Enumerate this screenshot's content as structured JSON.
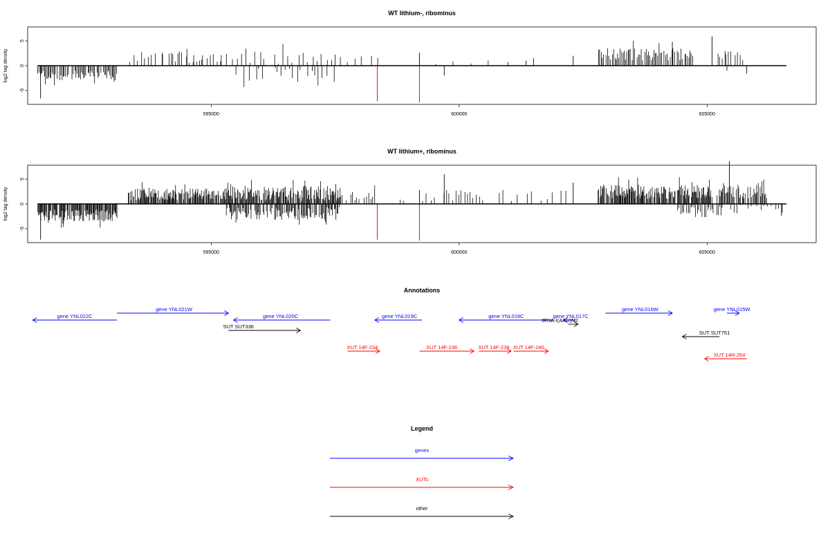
{
  "colors": {
    "genes": "#0000ff",
    "xuts": "#ff0000",
    "other": "#000000",
    "axis": "#000000"
  },
  "chart_data": [
    {
      "type": "bar",
      "title": "WT lithium-, ribominus",
      "xlabel": "",
      "ylabel": "log2 tag density",
      "xlim": [
        591300,
        607200
      ],
      "ylim": [
        -7.8,
        7.8
      ],
      "xticks": [
        595000,
        600000,
        605000
      ],
      "xticklabels": [
        "595000",
        "600000",
        "605000"
      ],
      "yticks": [
        5,
        0,
        -5
      ],
      "yticklabels": [
        "5",
        "0",
        "-5"
      ],
      "grid": false,
      "baseline": {
        "x": [
          591500,
          606600
        ],
        "y": 0
      },
      "red_marks": [
        {
          "x": 598350,
          "y": -7.2
        },
        {
          "x": 599200,
          "y": -7.4
        }
      ],
      "segments": [
        {
          "from": 591500,
          "to": 593100,
          "step": 22,
          "sign": -1,
          "base": 2.6,
          "amp": 1.9,
          "seed": 11
        },
        {
          "from": 593350,
          "to": 595200,
          "step": 70,
          "sign": 1,
          "base": 1.3,
          "amp": 2.2,
          "seed": 12
        },
        {
          "from": 594000,
          "to": 595000,
          "step": 160,
          "sign": 1,
          "base": 2.6,
          "amp": 1.8,
          "seed": 13
        },
        {
          "from": 595200,
          "to": 597600,
          "step": 95,
          "sign": 1,
          "base": 1.0,
          "amp": 2.5,
          "seed": 14
        },
        {
          "from": 595500,
          "to": 597500,
          "step": 75,
          "sign": -1,
          "base": 1.2,
          "amp": 2.8,
          "seed": 15
        },
        {
          "from": 597600,
          "to": 598300,
          "step": 140,
          "sign": 1,
          "base": 1.0,
          "amp": 1.6,
          "seed": 16
        },
        {
          "from": 599300,
          "to": 601000,
          "step": 420,
          "sign": 1,
          "base": 0.6,
          "amp": 1.6,
          "seed": 17
        },
        {
          "from": 602800,
          "to": 604700,
          "step": 26,
          "sign": 1,
          "base": 2.6,
          "amp": 2.5,
          "seed": 18
        },
        {
          "from": 605200,
          "to": 605700,
          "step": 45,
          "sign": 1,
          "base": 1.8,
          "amp": 2.5,
          "seed": 19
        }
      ],
      "bars": [
        {
          "x": 591560,
          "y": -6.6
        },
        {
          "x": 599200,
          "y": 2.6
        },
        {
          "x": 599700,
          "y": -2.0
        },
        {
          "x": 601350,
          "y": 1.0
        },
        {
          "x": 601500,
          "y": 1.5
        },
        {
          "x": 602300,
          "y": 2.0
        },
        {
          "x": 604300,
          "y": 4.8
        },
        {
          "x": 605100,
          "y": 5.9
        },
        {
          "x": 605400,
          "y": -1.0
        },
        {
          "x": 605800,
          "y": -1.6
        }
      ]
    },
    {
      "type": "bar",
      "title": "WT lithium+, ribominus",
      "xlabel": "",
      "ylabel": "log2 tag density",
      "xlim": [
        591300,
        607200
      ],
      "ylim": [
        -7.8,
        7.8
      ],
      "xticks": [
        595000,
        600000,
        605000
      ],
      "xticklabels": [
        "595000",
        "600000",
        "605000"
      ],
      "yticks": [
        5,
        0,
        -5
      ],
      "yticklabels": [
        "5",
        "0",
        "-5"
      ],
      "grid": false,
      "baseline": {
        "x": [
          591500,
          606600
        ],
        "y": 0
      },
      "red_marks": [
        {
          "x": 598350,
          "y": -7.2
        },
        {
          "x": 599200,
          "y": -7.4
        }
      ],
      "segments": [
        {
          "from": 591500,
          "to": 593100,
          "step": 14,
          "sign": -1,
          "base": 2.8,
          "amp": 2.4,
          "seed": 21
        },
        {
          "from": 593300,
          "to": 595300,
          "step": 14,
          "sign": 1,
          "base": 1.8,
          "amp": 2.4,
          "seed": 22
        },
        {
          "from": 595300,
          "to": 597600,
          "step": 15,
          "sign": 1,
          "base": 1.6,
          "amp": 3.0,
          "seed": 23
        },
        {
          "from": 595300,
          "to": 597600,
          "step": 18,
          "sign": -1,
          "base": 1.6,
          "amp": 2.6,
          "seed": 24
        },
        {
          "from": 597600,
          "to": 598300,
          "step": 40,
          "sign": 1,
          "base": 1.5,
          "amp": 2.0,
          "seed": 25
        },
        {
          "from": 598800,
          "to": 598900,
          "step": 50,
          "sign": 1,
          "base": 1.0,
          "amp": 2.0,
          "seed": 26
        },
        {
          "from": 599250,
          "to": 600500,
          "step": 60,
          "sign": 1,
          "base": 1.2,
          "amp": 2.5,
          "seed": 27
        },
        {
          "from": 600600,
          "to": 602400,
          "step": 140,
          "sign": 1,
          "base": 0.8,
          "amp": 2.5,
          "seed": 28
        },
        {
          "from": 602800,
          "to": 605100,
          "step": 14,
          "sign": 1,
          "base": 2.5,
          "amp": 2.8,
          "seed": 29
        },
        {
          "from": 604400,
          "to": 605300,
          "step": 30,
          "sign": -1,
          "base": 0.6,
          "amp": 2.6,
          "seed": 30
        },
        {
          "from": 605200,
          "to": 606200,
          "step": 18,
          "sign": 1,
          "base": 2.6,
          "amp": 3.2,
          "seed": 31
        },
        {
          "from": 605300,
          "to": 606500,
          "step": 70,
          "sign": -1,
          "base": 0.5,
          "amp": 2.0,
          "seed": 32
        }
      ],
      "bars": [
        {
          "x": 591560,
          "y": -7.2
        },
        {
          "x": 599200,
          "y": 2.8
        },
        {
          "x": 599700,
          "y": 6.0
        },
        {
          "x": 602300,
          "y": 4.3
        },
        {
          "x": 605450,
          "y": 8.6
        },
        {
          "x": 606500,
          "y": -2.4
        }
      ]
    }
  ],
  "annotations": {
    "title": "Annotations",
    "features": [
      {
        "label": "gene YNL022C",
        "type": "genes",
        "x1": 593100,
        "x2": 591400,
        "y": 0,
        "dir": "left",
        "label_at": 592250
      },
      {
        "label": "gene YNL021W",
        "type": "genes",
        "x1": 593100,
        "x2": 595350,
        "y": 1,
        "dir": "right",
        "label_at": 594250
      },
      {
        "label": "gene YNL020C",
        "type": "genes",
        "x1": 597400,
        "x2": 595450,
        "y": 0,
        "dir": "left",
        "label_at": 596400
      },
      {
        "label": "gene YNL019C",
        "type": "genes",
        "x1": 599250,
        "x2": 598300,
        "y": 0,
        "dir": "left",
        "label_at": 598800
      },
      {
        "label": "gene YNL018C",
        "type": "genes",
        "x1": 601900,
        "x2": 600000,
        "y": 0,
        "dir": "left",
        "label_at": 600950
      },
      {
        "label": "gene YNL017C",
        "type": "genes",
        "x1": 602350,
        "x2": 602100,
        "y": 0,
        "dir": "left",
        "label_at": 602250
      },
      {
        "label": "gene YNL016W",
        "type": "genes",
        "x1": 602950,
        "x2": 604300,
        "y": 1,
        "dir": "right",
        "label_at": 603650
      },
      {
        "label": "gene YNL015W",
        "type": "genes",
        "x1": 605400,
        "x2": 605650,
        "y": 1,
        "dir": "right",
        "label_at": 605500
      },
      {
        "label": "tRNA-I(AAU)N2",
        "type": "other",
        "x1": 602200,
        "x2": 602400,
        "y": -0.6,
        "dir": "right",
        "label_at": 602400
      },
      {
        "label": "SUT SUT336",
        "type": "other",
        "x1": 595350,
        "x2": 596800,
        "y": -1.5,
        "dir": "right",
        "label_at": 595550
      },
      {
        "label": "SUT SUT751",
        "type": "other",
        "x1": 605250,
        "x2": 604500,
        "y": -2.4,
        "dir": "left",
        "label_at": 605150
      },
      {
        "label": "XUT 14F-234",
        "type": "xuts",
        "x1": 597750,
        "x2": 598400,
        "y": -4.5,
        "dir": "right",
        "label_at": 598050
      },
      {
        "label": "XUT 14F-236",
        "type": "xuts",
        "x1": 599200,
        "x2": 600300,
        "y": -4.5,
        "dir": "right",
        "label_at": 599650
      },
      {
        "label": "XUT 14F-238",
        "type": "xuts",
        "x1": 600400,
        "x2": 601050,
        "y": -4.5,
        "dir": "right",
        "label_at": 600700
      },
      {
        "label": "XUT 14F-240",
        "type": "xuts",
        "x1": 601100,
        "x2": 601800,
        "y": -4.5,
        "dir": "right",
        "label_at": 601400
      },
      {
        "label": "XUT 14R-264",
        "type": "xuts",
        "x1": 605800,
        "x2": 604950,
        "y": -5.6,
        "dir": "left",
        "label_at": 605450
      }
    ]
  },
  "legend": {
    "title": "Legend",
    "items": [
      {
        "label": "genes",
        "type": "genes"
      },
      {
        "label": "XUTs",
        "type": "xuts"
      },
      {
        "label": "other",
        "type": "other"
      }
    ]
  }
}
